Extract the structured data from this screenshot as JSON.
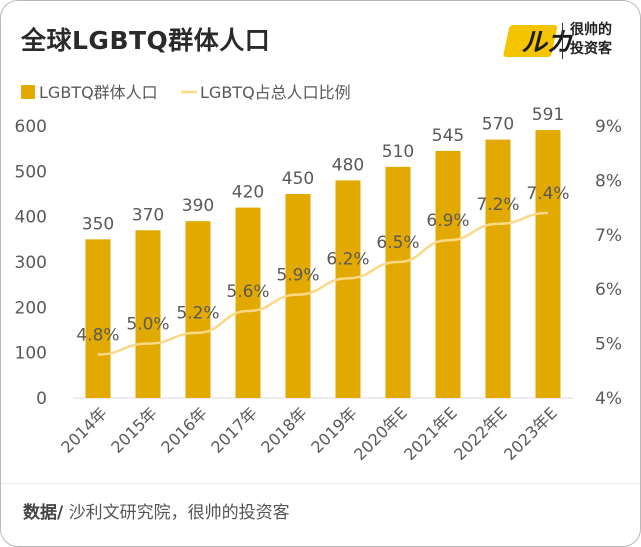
{
  "title": "全球LGBTQ群体人口",
  "logo": {
    "mark": "帅",
    "line1": "很帅的",
    "line2": "投资客"
  },
  "source": {
    "label": "数据/",
    "text": "沙利文研究院，很帅的投资客"
  },
  "colors": {
    "bar": "#E2AA00",
    "line": "#F9D987",
    "axis_text": "#595959",
    "grid": "#D9D9D9"
  },
  "chart_data": {
    "type": "bar",
    "categories": [
      "2014年",
      "2015年",
      "2016年",
      "2017年",
      "2018年",
      "2019年",
      "2020年E",
      "2021年E",
      "2022年E",
      "2023年E"
    ],
    "series": [
      {
        "name": "LGBTQ群体人口",
        "type": "bar",
        "axis": "left",
        "values": [
          350,
          370,
          390,
          420,
          450,
          480,
          510,
          545,
          570,
          591
        ]
      },
      {
        "name": "LGBTQ占总人口比例",
        "type": "line",
        "axis": "right",
        "values": [
          4.8,
          5.0,
          5.2,
          5.6,
          5.9,
          6.2,
          6.5,
          6.9,
          7.2,
          7.4
        ],
        "labels": [
          "4.8%",
          "5.0%",
          "5.2%",
          "5.6%",
          "5.9%",
          "6.2%",
          "6.5%",
          "6.9%",
          "7.2%",
          "7.4%"
        ]
      }
    ],
    "y_left": {
      "min": 0,
      "max": 600,
      "ticks": [
        0,
        100,
        200,
        300,
        400,
        500,
        600
      ],
      "tick_labels": [
        "0",
        "100",
        "200",
        "300",
        "400",
        "500",
        "600"
      ]
    },
    "y_right": {
      "min": 4,
      "max": 9,
      "ticks": [
        4,
        5,
        6,
        7,
        8,
        9
      ],
      "tick_labels": [
        "4%",
        "5%",
        "6%",
        "7%",
        "8%",
        "9%"
      ]
    },
    "legend": "top-left",
    "grid": false
  }
}
